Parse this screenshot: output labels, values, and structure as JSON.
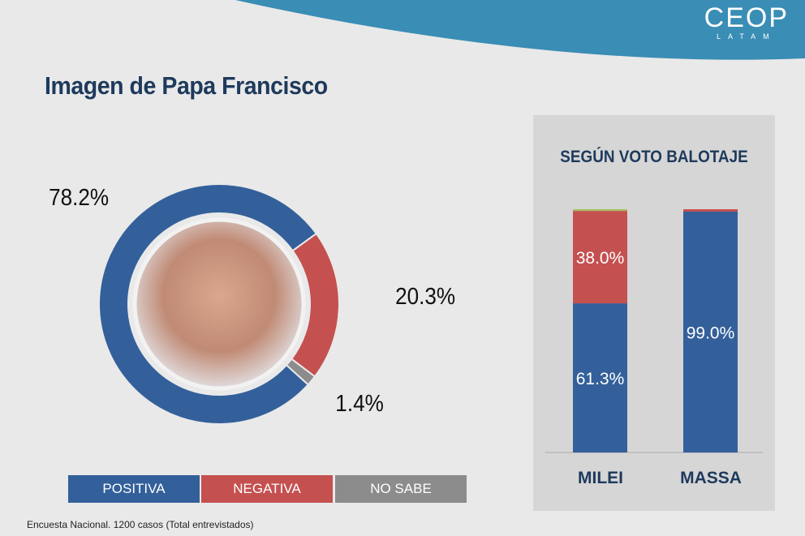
{
  "header": {
    "logo": "CEOP",
    "logo_sub": "LATAM"
  },
  "colors": {
    "positiva": "#33609a",
    "negativa": "#c55050",
    "no_sabe": "#8c8c8c",
    "other": "#a8c060",
    "band": "#3a8db5"
  },
  "chart_data": [
    {
      "type": "pie",
      "title": "Imagen de Papa Francisco",
      "donut": true,
      "categories": [
        "POSITIVA",
        "NEGATIVA",
        "NO SABE"
      ],
      "values": [
        78.2,
        20.3,
        1.4
      ],
      "labels": [
        "78.2%",
        "20.3%",
        "1.4%"
      ],
      "legend": "bottom"
    },
    {
      "type": "bar",
      "stacked": true,
      "title": "SEGÚN VOTO BALOTAJE",
      "categories": [
        "MILEI",
        "MASSA"
      ],
      "series": [
        {
          "name": "POSITIVA",
          "values": [
            61.3,
            99.0
          ],
          "labels": [
            "61.3%",
            "99.0%"
          ]
        },
        {
          "name": "NEGATIVA",
          "values": [
            38.0,
            1.0
          ],
          "labels": [
            "38.0%",
            ""
          ]
        },
        {
          "name": "NO SABE",
          "values": [
            0.7,
            0
          ],
          "labels": [
            "",
            ""
          ]
        }
      ],
      "ylim": [
        0,
        100
      ]
    }
  ],
  "footer": "Encuesta Nacional. 1200 casos (Total entrevistados)"
}
